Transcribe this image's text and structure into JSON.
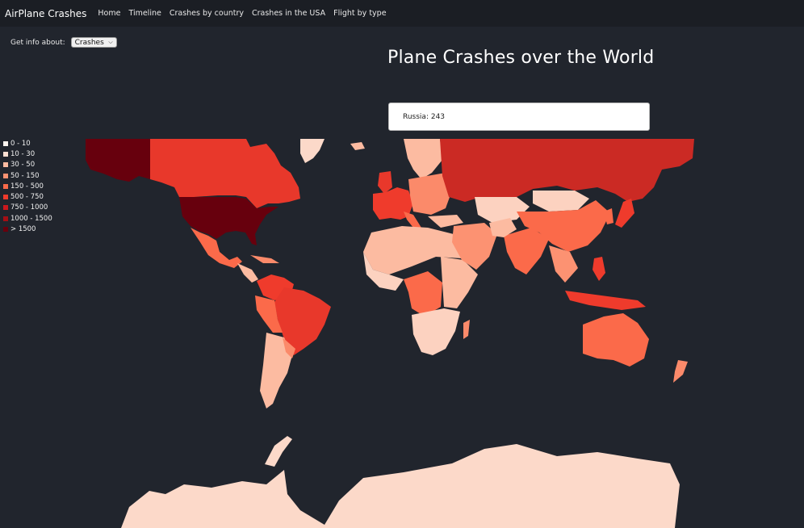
{
  "navbar": {
    "brand": "AirPlane Crashes",
    "links": [
      "Home",
      "Timeline",
      "Crashes by country",
      "Crashes in the USA",
      "Flight by type"
    ]
  },
  "control": {
    "label": "Get info about:",
    "selected": "Crashes"
  },
  "title": "Plane Crashes over the World",
  "tooltip": "Russia: 243",
  "legend": [
    {
      "label": "0 - 10",
      "color": "#fff5f0"
    },
    {
      "label": "10 - 30",
      "color": "#fee0d2"
    },
    {
      "label": "30 - 50",
      "color": "#fcbba1"
    },
    {
      "label": "50 - 150",
      "color": "#fc9272"
    },
    {
      "label": "150 - 500",
      "color": "#fb6a4a"
    },
    {
      "label": "500 - 750",
      "color": "#ef3b2c"
    },
    {
      "label": "750 - 1000",
      "color": "#cb181d"
    },
    {
      "label": "1000 - 1500",
      "color": "#a50f15"
    },
    {
      "label": "> 1500",
      "color": "#67000d"
    }
  ],
  "colors": {
    "background": "#21252d",
    "navbar": "#1b1e24"
  }
}
